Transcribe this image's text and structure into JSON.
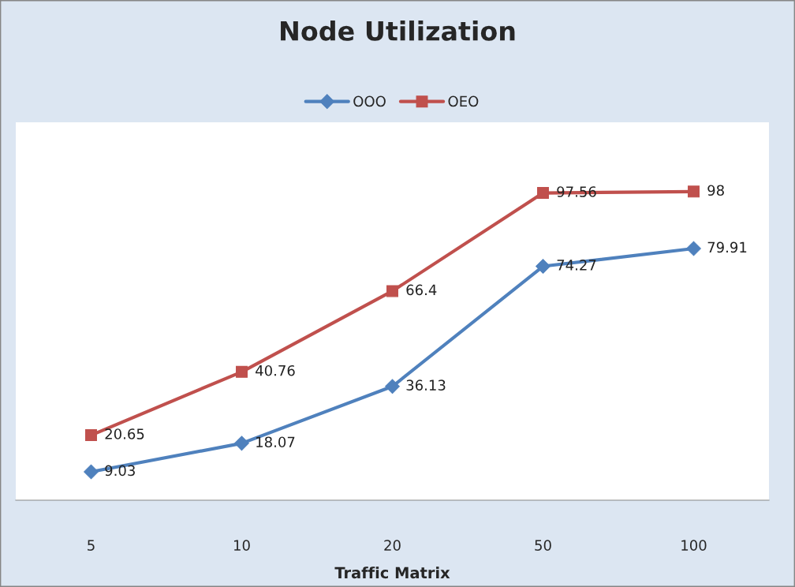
{
  "chart_data": {
    "type": "line",
    "title": "Node Utilization",
    "xlabel": "Traffic Matrix",
    "categories": [
      "5",
      "10",
      "20",
      "50",
      "100"
    ],
    "series": [
      {
        "name": "OOO",
        "color": "#4f81bd",
        "marker": "diamond",
        "values": [
          9.03,
          18.07,
          36.13,
          74.27,
          79.91
        ]
      },
      {
        "name": "OEO",
        "color": "#c0504d",
        "marker": "square",
        "values": [
          20.65,
          40.76,
          66.4,
          97.56,
          98
        ]
      }
    ],
    "ylim": [
      0,
      120
    ],
    "tick_labels": "x",
    "data_labels": true,
    "legend": "top",
    "grid": false,
    "line_style": "solid"
  }
}
